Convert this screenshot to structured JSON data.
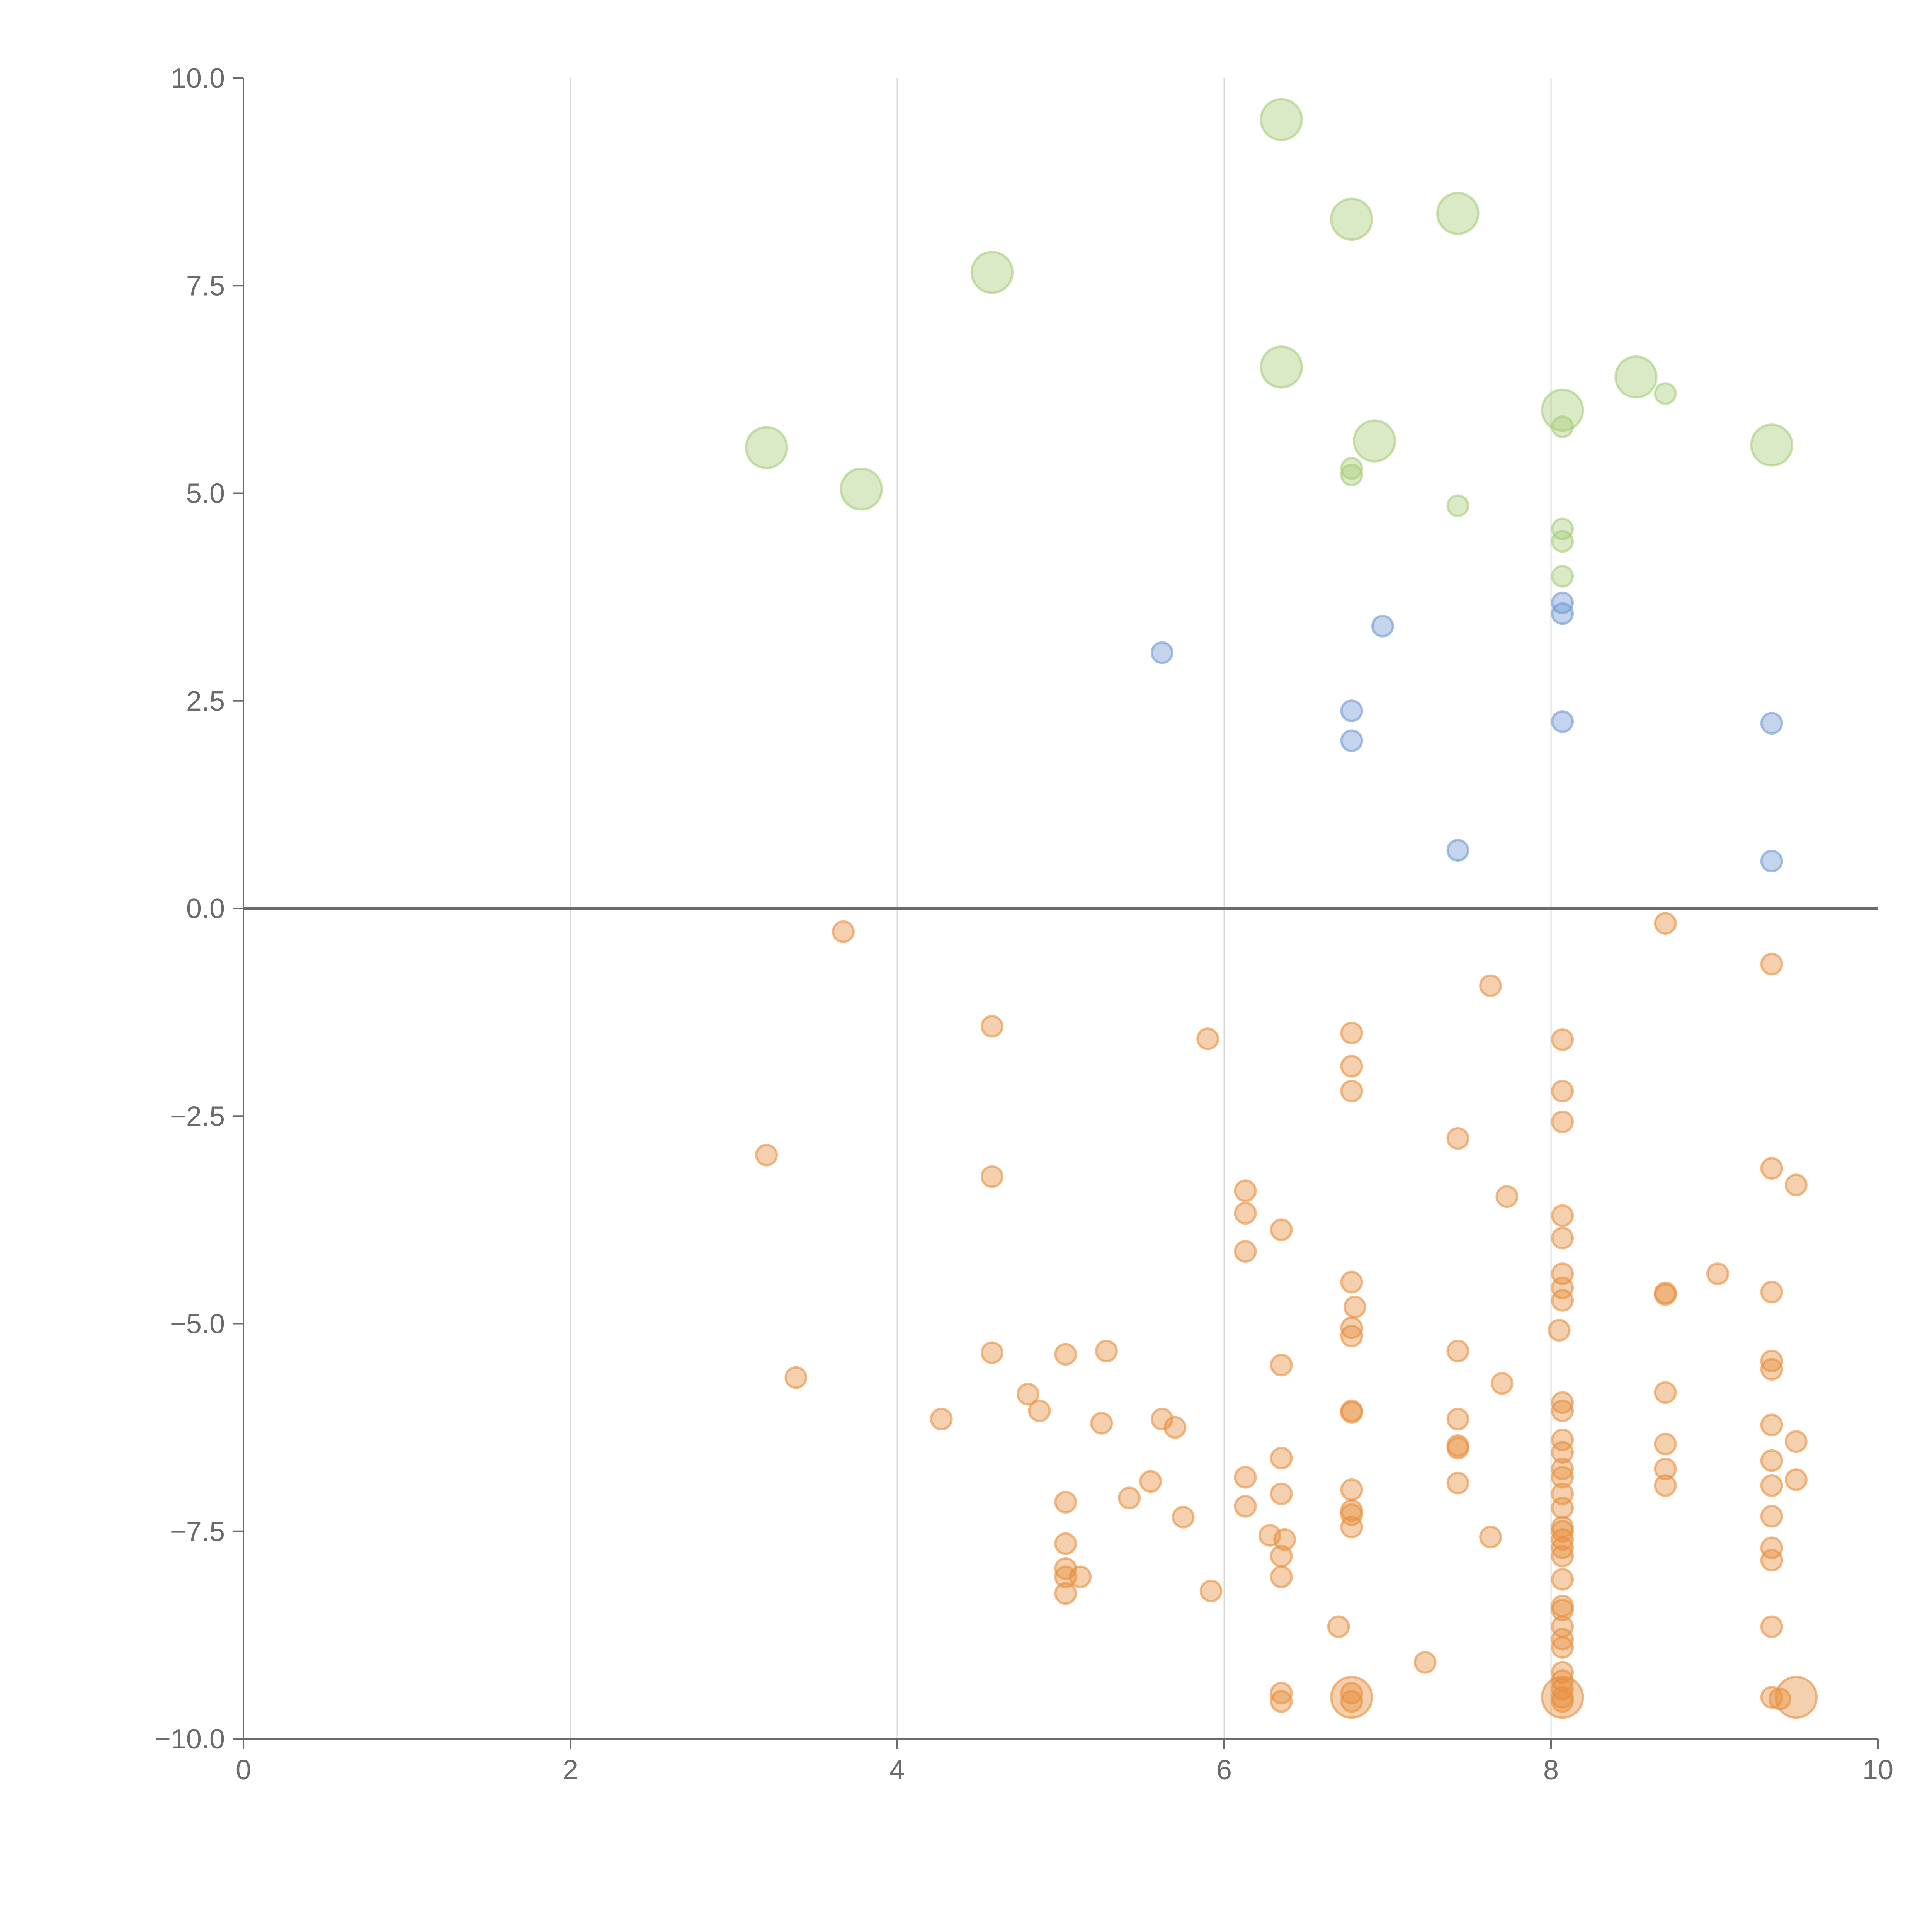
{
  "colors": {
    "negative": "#e8903e",
    "low_positive": "#6f98d2",
    "high_positive": "#a7cc78",
    "axis": "#6b6b6b",
    "grid": "#d8d8d8"
  },
  "chart_data": {
    "type": "scatter",
    "title": "",
    "xlabel": "",
    "ylabel": "",
    "xlim": [
      0,
      10
    ],
    "ylim": [
      -10,
      10
    ],
    "x_ticks": [
      "0",
      "2",
      "4",
      "6",
      "8",
      "10"
    ],
    "y_ticks": [
      "10.0",
      "7.5",
      "5.0",
      "2.5",
      "0.0",
      "−2.5",
      "−5.0",
      "−7.5",
      "−10.0"
    ],
    "x_grid": true,
    "zero_line": true,
    "series": [
      {
        "color_key": "high_positive",
        "points": [
          [
            6.35,
            9.5,
            1.6
          ],
          [
            6.78,
            8.3,
            1.6
          ],
          [
            7.43,
            8.37,
            1.6
          ],
          [
            4.58,
            7.66,
            1.6
          ],
          [
            6.35,
            6.52,
            1.6
          ],
          [
            8.07,
            6.0,
            1.6
          ],
          [
            8.52,
            6.4,
            1.6
          ],
          [
            6.92,
            5.63,
            1.6
          ],
          [
            3.2,
            5.55,
            1.6
          ],
          [
            3.78,
            5.05,
            1.6
          ],
          [
            9.35,
            5.58,
            1.6
          ],
          [
            8.7,
            6.2,
            0.8
          ],
          [
            8.07,
            5.8,
            0.8
          ],
          [
            6.78,
            5.3,
            0.8
          ],
          [
            6.78,
            5.22,
            0.8
          ],
          [
            7.43,
            4.85,
            0.8
          ],
          [
            8.07,
            4.57,
            0.8
          ],
          [
            8.07,
            4.42,
            0.8
          ],
          [
            8.07,
            4.0,
            0.8
          ]
        ]
      },
      {
        "color_key": "low_positive",
        "points": [
          [
            8.07,
            3.68,
            0.8
          ],
          [
            8.07,
            3.55,
            0.8
          ],
          [
            6.97,
            3.4,
            0.8
          ],
          [
            5.62,
            3.08,
            0.8
          ],
          [
            6.78,
            2.38,
            0.8
          ],
          [
            6.78,
            2.02,
            0.8
          ],
          [
            8.07,
            2.25,
            0.8
          ],
          [
            9.35,
            2.23,
            0.8
          ],
          [
            7.43,
            0.7,
            0.8
          ],
          [
            9.35,
            0.57,
            0.8
          ]
        ]
      },
      {
        "color_key": "negative",
        "points": [
          [
            3.67,
            -0.28,
            0.8
          ],
          [
            8.7,
            -0.18,
            0.8
          ],
          [
            9.35,
            -0.67,
            0.8
          ],
          [
            7.63,
            -0.93,
            0.8
          ],
          [
            4.58,
            -1.42,
            0.8
          ],
          [
            5.9,
            -1.57,
            0.8
          ],
          [
            6.78,
            -1.5,
            0.8
          ],
          [
            8.07,
            -1.58,
            0.8
          ],
          [
            6.78,
            -1.9,
            0.8
          ],
          [
            6.78,
            -2.2,
            0.8
          ],
          [
            8.07,
            -2.2,
            0.8
          ],
          [
            8.07,
            -2.57,
            0.8
          ],
          [
            7.43,
            -2.77,
            0.8
          ],
          [
            3.2,
            -2.97,
            0.8
          ],
          [
            4.58,
            -3.23,
            0.8
          ],
          [
            9.35,
            -3.13,
            0.8
          ],
          [
            9.5,
            -3.33,
            0.8
          ],
          [
            6.13,
            -3.4,
            0.8
          ],
          [
            7.73,
            -3.47,
            0.8
          ],
          [
            6.13,
            -3.67,
            0.8
          ],
          [
            8.07,
            -3.7,
            0.8
          ],
          [
            6.35,
            -3.87,
            0.8
          ],
          [
            8.07,
            -3.97,
            0.8
          ],
          [
            6.13,
            -4.13,
            0.8
          ],
          [
            9.02,
            -4.4,
            0.8
          ],
          [
            8.07,
            -4.4,
            0.8
          ],
          [
            8.7,
            -4.63,
            0.8
          ],
          [
            8.7,
            -4.65,
            0.8
          ],
          [
            9.35,
            -4.62,
            0.8
          ],
          [
            6.78,
            -4.5,
            0.8
          ],
          [
            8.07,
            -4.57,
            0.8
          ],
          [
            8.07,
            -4.72,
            0.8
          ],
          [
            6.8,
            -4.8,
            0.8
          ],
          [
            6.78,
            -5.05,
            0.8
          ],
          [
            6.78,
            -5.15,
            0.8
          ],
          [
            8.05,
            -5.08,
            0.8
          ],
          [
            4.58,
            -5.35,
            0.8
          ],
          [
            5.03,
            -5.37,
            0.8
          ],
          [
            5.28,
            -5.33,
            0.8
          ],
          [
            7.43,
            -5.33,
            0.8
          ],
          [
            9.35,
            -5.45,
            0.8
          ],
          [
            9.35,
            -5.55,
            0.8
          ],
          [
            6.35,
            -5.5,
            0.8
          ],
          [
            3.38,
            -5.65,
            0.8
          ],
          [
            7.7,
            -5.72,
            0.8
          ],
          [
            4.8,
            -5.85,
            0.8
          ],
          [
            8.7,
            -5.83,
            0.8
          ],
          [
            4.87,
            -6.05,
            0.8
          ],
          [
            8.07,
            -5.95,
            0.8
          ],
          [
            8.07,
            -6.05,
            0.8
          ],
          [
            6.78,
            -6.05,
            0.8
          ],
          [
            6.78,
            -6.07,
            0.8
          ],
          [
            4.27,
            -6.15,
            0.8
          ],
          [
            5.25,
            -6.2,
            0.8
          ],
          [
            5.62,
            -6.15,
            0.8
          ],
          [
            5.7,
            -6.25,
            0.8
          ],
          [
            7.43,
            -6.15,
            0.8
          ],
          [
            9.35,
            -6.22,
            0.8
          ],
          [
            8.07,
            -6.4,
            0.8
          ],
          [
            7.43,
            -6.47,
            0.8
          ],
          [
            7.43,
            -6.5,
            0.8
          ],
          [
            8.7,
            -6.45,
            0.8
          ],
          [
            9.5,
            -6.42,
            0.8
          ],
          [
            8.07,
            -6.55,
            0.8
          ],
          [
            6.35,
            -6.62,
            0.8
          ],
          [
            9.35,
            -6.65,
            0.8
          ],
          [
            8.7,
            -6.75,
            0.8
          ],
          [
            8.07,
            -6.75,
            0.8
          ],
          [
            8.07,
            -6.85,
            0.8
          ],
          [
            6.13,
            -6.85,
            0.8
          ],
          [
            5.55,
            -6.9,
            0.8
          ],
          [
            8.7,
            -6.95,
            0.8
          ],
          [
            7.43,
            -6.92,
            0.8
          ],
          [
            9.35,
            -6.95,
            0.8
          ],
          [
            9.5,
            -6.88,
            0.8
          ],
          [
            6.78,
            -7.0,
            0.8
          ],
          [
            6.35,
            -7.05,
            0.8
          ],
          [
            8.07,
            -7.05,
            0.8
          ],
          [
            5.42,
            -7.1,
            0.8
          ],
          [
            5.03,
            -7.15,
            0.8
          ],
          [
            6.13,
            -7.2,
            0.8
          ],
          [
            8.07,
            -7.22,
            0.8
          ],
          [
            6.78,
            -7.25,
            0.8
          ],
          [
            6.78,
            -7.3,
            0.8
          ],
          [
            9.35,
            -7.32,
            0.8
          ],
          [
            5.75,
            -7.33,
            0.8
          ],
          [
            6.78,
            -7.45,
            0.8
          ],
          [
            8.07,
            -7.45,
            0.8
          ],
          [
            8.07,
            -7.5,
            0.8
          ],
          [
            6.28,
            -7.55,
            0.8
          ],
          [
            7.63,
            -7.57,
            0.8
          ],
          [
            8.07,
            -7.6,
            0.8
          ],
          [
            6.37,
            -7.6,
            0.8
          ],
          [
            5.03,
            -7.65,
            0.8
          ],
          [
            8.07,
            -7.7,
            0.8
          ],
          [
            9.35,
            -7.7,
            0.8
          ],
          [
            6.35,
            -7.8,
            0.8
          ],
          [
            8.07,
            -7.8,
            0.8
          ],
          [
            9.35,
            -7.85,
            0.8
          ],
          [
            5.03,
            -7.95,
            0.8
          ],
          [
            5.12,
            -8.05,
            0.8
          ],
          [
            5.03,
            -8.05,
            0.8
          ],
          [
            6.35,
            -8.05,
            0.8
          ],
          [
            8.07,
            -8.08,
            0.8
          ],
          [
            5.92,
            -8.22,
            0.8
          ],
          [
            5.03,
            -8.25,
            0.8
          ],
          [
            8.07,
            -8.4,
            0.8
          ],
          [
            8.07,
            -8.45,
            0.8
          ],
          [
            6.7,
            -8.65,
            0.8
          ],
          [
            9.35,
            -8.65,
            0.8
          ],
          [
            8.07,
            -8.65,
            0.8
          ],
          [
            8.07,
            -8.8,
            0.8
          ],
          [
            8.07,
            -8.9,
            0.8
          ],
          [
            7.23,
            -9.08,
            0.8
          ],
          [
            8.07,
            -9.2,
            0.8
          ],
          [
            8.07,
            -9.3,
            0.8
          ],
          [
            8.07,
            -9.4,
            0.8
          ],
          [
            6.35,
            -9.45,
            0.8
          ],
          [
            6.35,
            -9.55,
            0.8
          ],
          [
            6.78,
            -9.45,
            0.8
          ],
          [
            6.78,
            -9.55,
            0.8
          ],
          [
            8.07,
            -9.5,
            0.8
          ],
          [
            8.07,
            -9.55,
            0.8
          ],
          [
            9.35,
            -9.5,
            0.8
          ],
          [
            9.4,
            -9.52,
            0.8
          ],
          [
            6.78,
            -9.5,
            1.6
          ],
          [
            8.07,
            -9.5,
            1.6
          ],
          [
            9.5,
            -9.5,
            1.6
          ]
        ]
      }
    ]
  }
}
